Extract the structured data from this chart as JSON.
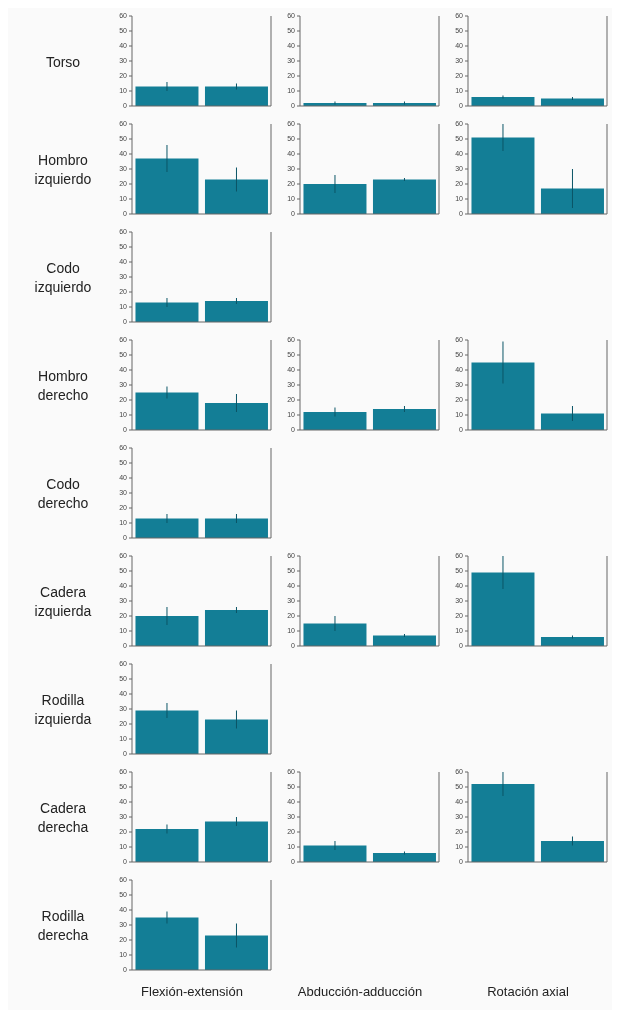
{
  "chart_data": [
    {
      "type": "bar",
      "ylabel": "Torso",
      "categories": [
        null,
        null
      ],
      "values": [
        13,
        13
      ],
      "errors": [
        3,
        2
      ],
      "color": "#137e96",
      "ylim": [
        0,
        60
      ],
      "yticks": [
        0,
        10,
        20,
        30,
        40,
        50,
        60
      ],
      "grid": false,
      "legend": false
    },
    {
      "type": "bar",
      "categories": [
        null,
        null
      ],
      "values": [
        2,
        2
      ],
      "errors": [
        1,
        1
      ],
      "color": "#137e96",
      "ylim": [
        0,
        60
      ],
      "yticks": [
        0,
        10,
        20,
        30,
        40,
        50,
        60
      ],
      "grid": false,
      "legend": false
    },
    {
      "type": "bar",
      "categories": [
        null,
        null
      ],
      "values": [
        6,
        5
      ],
      "errors": [
        1,
        1
      ],
      "color": "#137e96",
      "ylim": [
        0,
        60
      ],
      "yticks": [
        0,
        10,
        20,
        30,
        40,
        50,
        60
      ],
      "grid": false,
      "legend": false
    },
    {
      "type": "bar",
      "ylabel": "Hombro izquierdo",
      "categories": [
        null,
        null
      ],
      "values": [
        37,
        23
      ],
      "errors": [
        9,
        8
      ],
      "color": "#137e96",
      "ylim": [
        0,
        60
      ],
      "yticks": [
        0,
        10,
        20,
        30,
        40,
        50,
        60
      ],
      "grid": false,
      "legend": false
    },
    {
      "type": "bar",
      "categories": [
        null,
        null
      ],
      "values": [
        20,
        23
      ],
      "errors": [
        6,
        1
      ],
      "color": "#137e96",
      "ylim": [
        0,
        60
      ],
      "yticks": [
        0,
        10,
        20,
        30,
        40,
        50,
        60
      ],
      "grid": false,
      "legend": false
    },
    {
      "type": "bar",
      "categories": [
        null,
        null
      ],
      "values": [
        51,
        17
      ],
      "errors": [
        9,
        13
      ],
      "color": "#137e96",
      "ylim": [
        0,
        60
      ],
      "yticks": [
        0,
        10,
        20,
        30,
        40,
        50,
        60
      ],
      "grid": false,
      "legend": false
    },
    {
      "type": "bar",
      "ylabel": "Codo izquierdo",
      "categories": [
        null,
        null
      ],
      "values": [
        13,
        14
      ],
      "errors": [
        3,
        2
      ],
      "color": "#137e96",
      "ylim": [
        0,
        60
      ],
      "yticks": [
        0,
        10,
        20,
        30,
        40,
        50,
        60
      ],
      "grid": false,
      "legend": false
    },
    {
      "type": "bar",
      "ylabel": "Hombro derecho",
      "categories": [
        null,
        null
      ],
      "values": [
        25,
        18
      ],
      "errors": [
        4,
        6
      ],
      "color": "#137e96",
      "ylim": [
        0,
        60
      ],
      "yticks": [
        0,
        10,
        20,
        30,
        40,
        50,
        60
      ],
      "grid": false,
      "legend": false
    },
    {
      "type": "bar",
      "categories": [
        null,
        null
      ],
      "values": [
        12,
        14
      ],
      "errors": [
        3,
        2
      ],
      "color": "#137e96",
      "ylim": [
        0,
        60
      ],
      "yticks": [
        0,
        10,
        20,
        30,
        40,
        50,
        60
      ],
      "grid": false,
      "legend": false
    },
    {
      "type": "bar",
      "categories": [
        null,
        null
      ],
      "values": [
        45,
        11
      ],
      "errors": [
        14,
        5
      ],
      "color": "#137e96",
      "ylim": [
        0,
        60
      ],
      "yticks": [
        0,
        10,
        20,
        30,
        40,
        50,
        60
      ],
      "grid": false,
      "legend": false
    },
    {
      "type": "bar",
      "ylabel": "Codo derecho",
      "categories": [
        null,
        null
      ],
      "values": [
        13,
        13
      ],
      "errors": [
        3,
        3
      ],
      "color": "#137e96",
      "ylim": [
        0,
        60
      ],
      "yticks": [
        0,
        10,
        20,
        30,
        40,
        50,
        60
      ],
      "grid": false,
      "legend": false
    },
    {
      "type": "bar",
      "ylabel": "Cadera izquierda",
      "categories": [
        null,
        null
      ],
      "values": [
        20,
        24
      ],
      "errors": [
        6,
        2
      ],
      "color": "#137e96",
      "ylim": [
        0,
        60
      ],
      "yticks": [
        0,
        10,
        20,
        30,
        40,
        50,
        60
      ],
      "grid": false,
      "legend": false
    },
    {
      "type": "bar",
      "categories": [
        null,
        null
      ],
      "values": [
        15,
        7
      ],
      "errors": [
        5,
        1
      ],
      "color": "#137e96",
      "ylim": [
        0,
        60
      ],
      "yticks": [
        0,
        10,
        20,
        30,
        40,
        50,
        60
      ],
      "grid": false,
      "legend": false
    },
    {
      "type": "bar",
      "categories": [
        null,
        null
      ],
      "values": [
        49,
        6
      ],
      "errors": [
        11,
        1
      ],
      "color": "#137e96",
      "ylim": [
        0,
        60
      ],
      "yticks": [
        0,
        10,
        20,
        30,
        40,
        50,
        60
      ],
      "grid": false,
      "legend": false
    },
    {
      "type": "bar",
      "ylabel": "Rodilla izquierda",
      "categories": [
        null,
        null
      ],
      "values": [
        29,
        23
      ],
      "errors": [
        5,
        6
      ],
      "color": "#137e96",
      "ylim": [
        0,
        60
      ],
      "yticks": [
        0,
        10,
        20,
        30,
        40,
        50,
        60
      ],
      "grid": false,
      "legend": false
    },
    {
      "type": "bar",
      "ylabel": "Cadera derecha",
      "categories": [
        null,
        null
      ],
      "values": [
        22,
        27
      ],
      "errors": [
        3,
        3
      ],
      "color": "#137e96",
      "ylim": [
        0,
        60
      ],
      "yticks": [
        0,
        10,
        20,
        30,
        40,
        50,
        60
      ],
      "grid": false,
      "legend": false
    },
    {
      "type": "bar",
      "xlabel": "Abducción-adducción",
      "categories": [
        null,
        null
      ],
      "values": [
        11,
        6
      ],
      "errors": [
        3,
        1
      ],
      "color": "#137e96",
      "ylim": [
        0,
        60
      ],
      "yticks": [
        0,
        10,
        20,
        30,
        40,
        50,
        60
      ],
      "grid": false,
      "legend": false
    },
    {
      "type": "bar",
      "xlabel": "Rotación axial",
      "categories": [
        null,
        null
      ],
      "values": [
        52,
        14
      ],
      "errors": [
        8,
        3
      ],
      "color": "#137e96",
      "ylim": [
        0,
        60
      ],
      "yticks": [
        0,
        10,
        20,
        30,
        40,
        50,
        60
      ],
      "grid": false,
      "legend": false
    },
    {
      "type": "bar",
      "ylabel": "Rodilla derecha",
      "xlabel": "Flexión-extensión",
      "categories": [
        null,
        null
      ],
      "values": [
        35,
        23
      ],
      "errors": [
        4,
        8
      ],
      "color": "#137e96",
      "ylim": [
        0,
        60
      ],
      "yticks": [
        0,
        10,
        20,
        30,
        40,
        50,
        60
      ],
      "grid": false,
      "legend": false
    }
  ]
}
